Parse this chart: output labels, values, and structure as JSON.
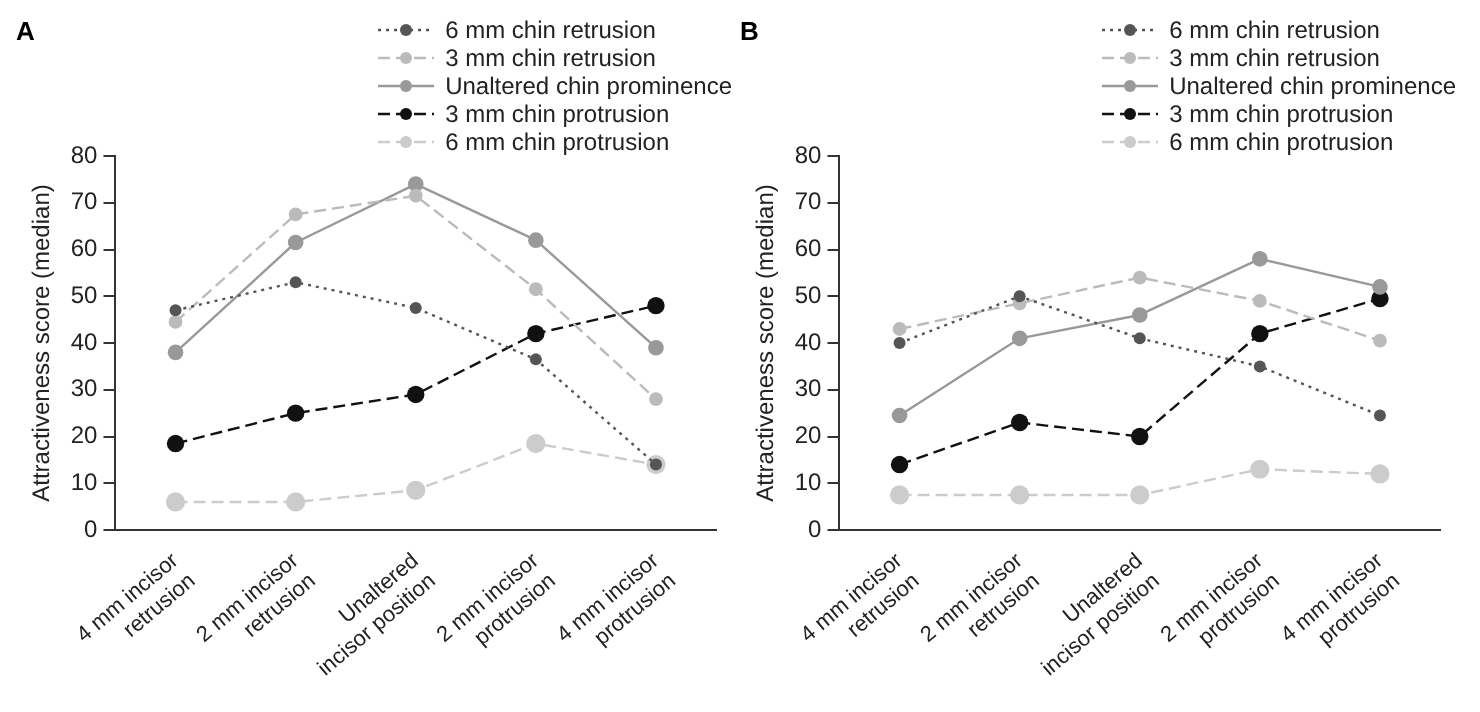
{
  "chart_data": [
    {
      "type": "line",
      "title": "A",
      "ylabel": "Attractiveness score (median)",
      "categories": [
        "4 mm incisor retrusion",
        "2 mm incisor retrusion",
        "Unaltered incisor position",
        "2 mm incisor protrusion",
        "4 mm incisor protrusion"
      ],
      "ylim": [
        0,
        80
      ],
      "yticks": [
        0,
        10,
        20,
        30,
        40,
        50,
        60,
        70,
        80
      ],
      "grid": false,
      "legend": "top right",
      "marker": "circle",
      "series": [
        {
          "name": "6 mm chin retrusion",
          "color": "#555555",
          "line_style": "dotted",
          "values": [
            47,
            53,
            47.5,
            36.5,
            14
          ]
        },
        {
          "name": "3 mm chin retrusion",
          "color": "#bbbbbb",
          "line_style": "dashed",
          "values": [
            44.5,
            67.5,
            71.5,
            51.5,
            28
          ]
        },
        {
          "name": "Unaltered chin prominence",
          "color": "#999999",
          "line_style": "solid",
          "values": [
            38,
            61.5,
            74,
            62,
            39
          ]
        },
        {
          "name": "3 mm chin protrusion",
          "color": "#111111",
          "line_style": "dashed",
          "values": [
            18.5,
            25,
            29,
            42,
            48
          ]
        },
        {
          "name": "6 mm chin protrusion",
          "color": "#cccccc",
          "line_style": "dashed",
          "values": [
            6,
            6,
            8.5,
            18.5,
            14
          ]
        }
      ]
    },
    {
      "type": "line",
      "title": "B",
      "ylabel": "Attractiveness score (median)",
      "categories": [
        "4 mm incisor retrusion",
        "2 mm incisor retrusion",
        "Unaltered incisor position",
        "2 mm incisor protrusion",
        "4 mm incisor protrusion"
      ],
      "ylim": [
        0,
        80
      ],
      "yticks": [
        0,
        10,
        20,
        30,
        40,
        50,
        60,
        70,
        80
      ],
      "grid": false,
      "legend": "top right",
      "marker": "circle",
      "series": [
        {
          "name": "6 mm chin retrusion",
          "color": "#555555",
          "line_style": "dotted",
          "values": [
            40,
            50,
            41,
            35,
            24.5
          ]
        },
        {
          "name": "3 mm chin retrusion",
          "color": "#bbbbbb",
          "line_style": "dashed",
          "values": [
            43,
            48.5,
            54,
            49,
            40.5
          ]
        },
        {
          "name": "Unaltered chin prominence",
          "color": "#999999",
          "line_style": "solid",
          "values": [
            24.5,
            41,
            46,
            58,
            52
          ]
        },
        {
          "name": "3 mm chin protrusion",
          "color": "#111111",
          "line_style": "dashed",
          "values": [
            14,
            23,
            20,
            42,
            49.5
          ]
        },
        {
          "name": "6 mm chin protrusion",
          "color": "#cccccc",
          "line_style": "dashed",
          "values": [
            7.5,
            7.5,
            7.5,
            13,
            12
          ]
        }
      ]
    }
  ]
}
